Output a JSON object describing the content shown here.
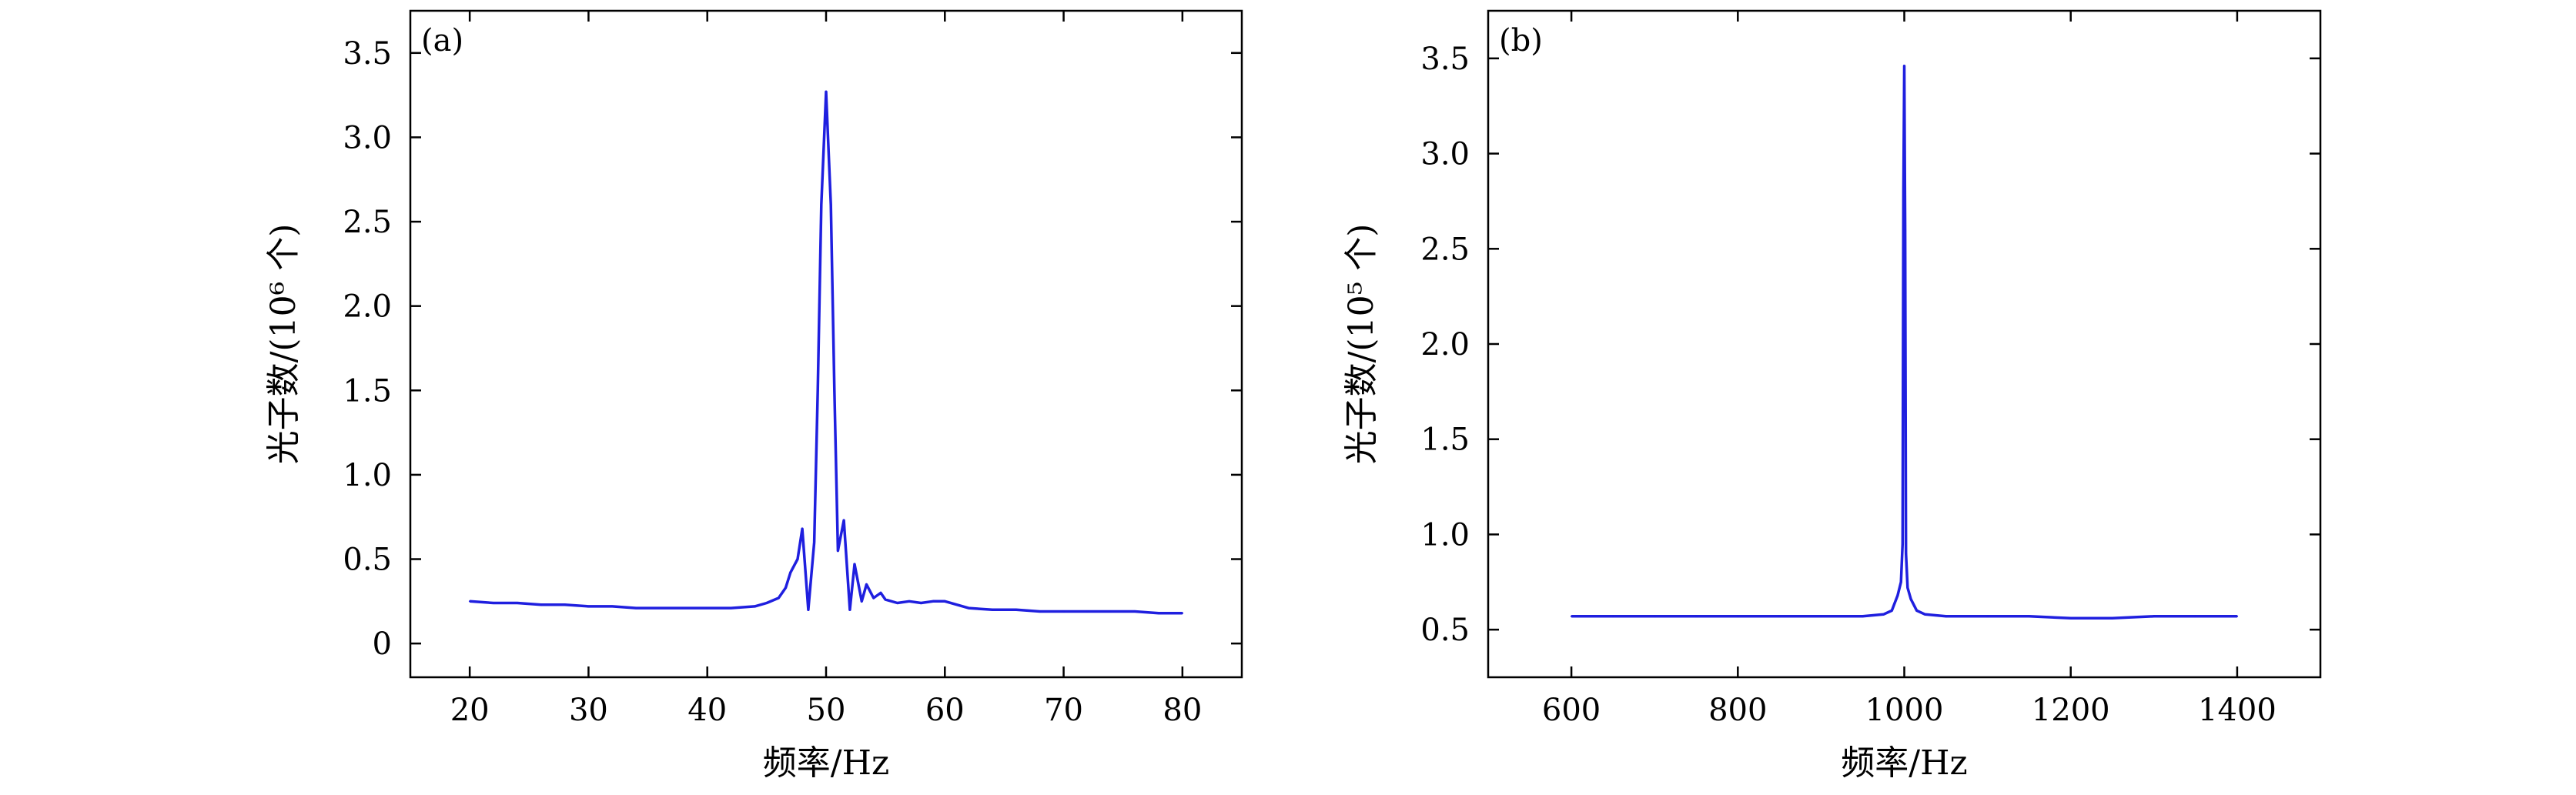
{
  "chart_data": [
    {
      "type": "line",
      "panel_label": "(a)",
      "xlabel": "频率/Hz",
      "ylabel": "光子数/(10⁶ 个)",
      "xlim": [
        15,
        85
      ],
      "ylim": [
        -0.2,
        3.75
      ],
      "xticks": [
        20,
        30,
        40,
        50,
        60,
        70,
        80
      ],
      "xtick_labels": [
        "20",
        "30",
        "40",
        "50",
        "60",
        "70",
        "80"
      ],
      "yticks": [
        0,
        0.5,
        1.0,
        1.5,
        2.0,
        2.5,
        3.0,
        3.5
      ],
      "ytick_labels": [
        "0",
        "0.5",
        "1.0",
        "1.5",
        "2.0",
        "2.5",
        "3.0",
        "3.5"
      ],
      "grid": false,
      "color": "#1f1fdf",
      "series": [
        {
          "x": [
            20,
            22,
            24,
            26,
            28,
            30,
            32,
            34,
            36,
            38,
            40,
            42,
            44,
            45,
            46,
            46.6,
            47,
            47.6,
            48,
            48.5,
            49,
            49.3,
            49.6,
            50,
            50.4,
            50.7,
            51,
            51.5,
            52,
            52.4,
            53,
            53.4,
            54,
            54.6,
            55,
            56,
            57,
            58,
            59,
            60,
            61,
            62,
            64,
            66,
            68,
            70,
            72,
            74,
            76,
            78,
            80
          ],
          "y": [
            0.25,
            0.24,
            0.24,
            0.23,
            0.23,
            0.22,
            0.22,
            0.21,
            0.21,
            0.21,
            0.21,
            0.21,
            0.22,
            0.24,
            0.27,
            0.33,
            0.42,
            0.5,
            0.68,
            0.2,
            0.6,
            1.5,
            2.6,
            3.27,
            2.6,
            1.5,
            0.55,
            0.73,
            0.2,
            0.47,
            0.25,
            0.35,
            0.27,
            0.3,
            0.26,
            0.24,
            0.25,
            0.24,
            0.25,
            0.25,
            0.23,
            0.21,
            0.2,
            0.2,
            0.19,
            0.19,
            0.19,
            0.19,
            0.19,
            0.18,
            0.18
          ]
        }
      ]
    },
    {
      "type": "line",
      "panel_label": "(b)",
      "xlabel": "频率/Hz",
      "ylabel": "光子数/(10⁵ 个)",
      "xlim": [
        500,
        1500
      ],
      "ylim": [
        0.25,
        3.75
      ],
      "xticks": [
        600,
        800,
        1000,
        1200,
        1400
      ],
      "xtick_labels": [
        "600",
        "800",
        "1000",
        "1200",
        "1400"
      ],
      "yticks": [
        0.5,
        1.0,
        1.5,
        2.0,
        2.5,
        3.0,
        3.5
      ],
      "ytick_labels": [
        "0.5",
        "1.0",
        "1.5",
        "2.0",
        "2.5",
        "3.0",
        "3.5"
      ],
      "grid": false,
      "color": "#1f1fdf",
      "series": [
        {
          "x": [
            600,
            650,
            700,
            750,
            800,
            850,
            900,
            950,
            975,
            985,
            992,
            996,
            998,
            999,
            1000,
            1001,
            1002,
            1004,
            1008,
            1015,
            1025,
            1050,
            1100,
            1150,
            1200,
            1250,
            1300,
            1350,
            1400
          ],
          "y": [
            0.57,
            0.57,
            0.57,
            0.57,
            0.57,
            0.57,
            0.57,
            0.57,
            0.58,
            0.6,
            0.68,
            0.75,
            0.95,
            2.8,
            3.46,
            2.6,
            0.9,
            0.72,
            0.66,
            0.6,
            0.58,
            0.57,
            0.57,
            0.57,
            0.56,
            0.56,
            0.57,
            0.57,
            0.57
          ]
        }
      ]
    }
  ]
}
